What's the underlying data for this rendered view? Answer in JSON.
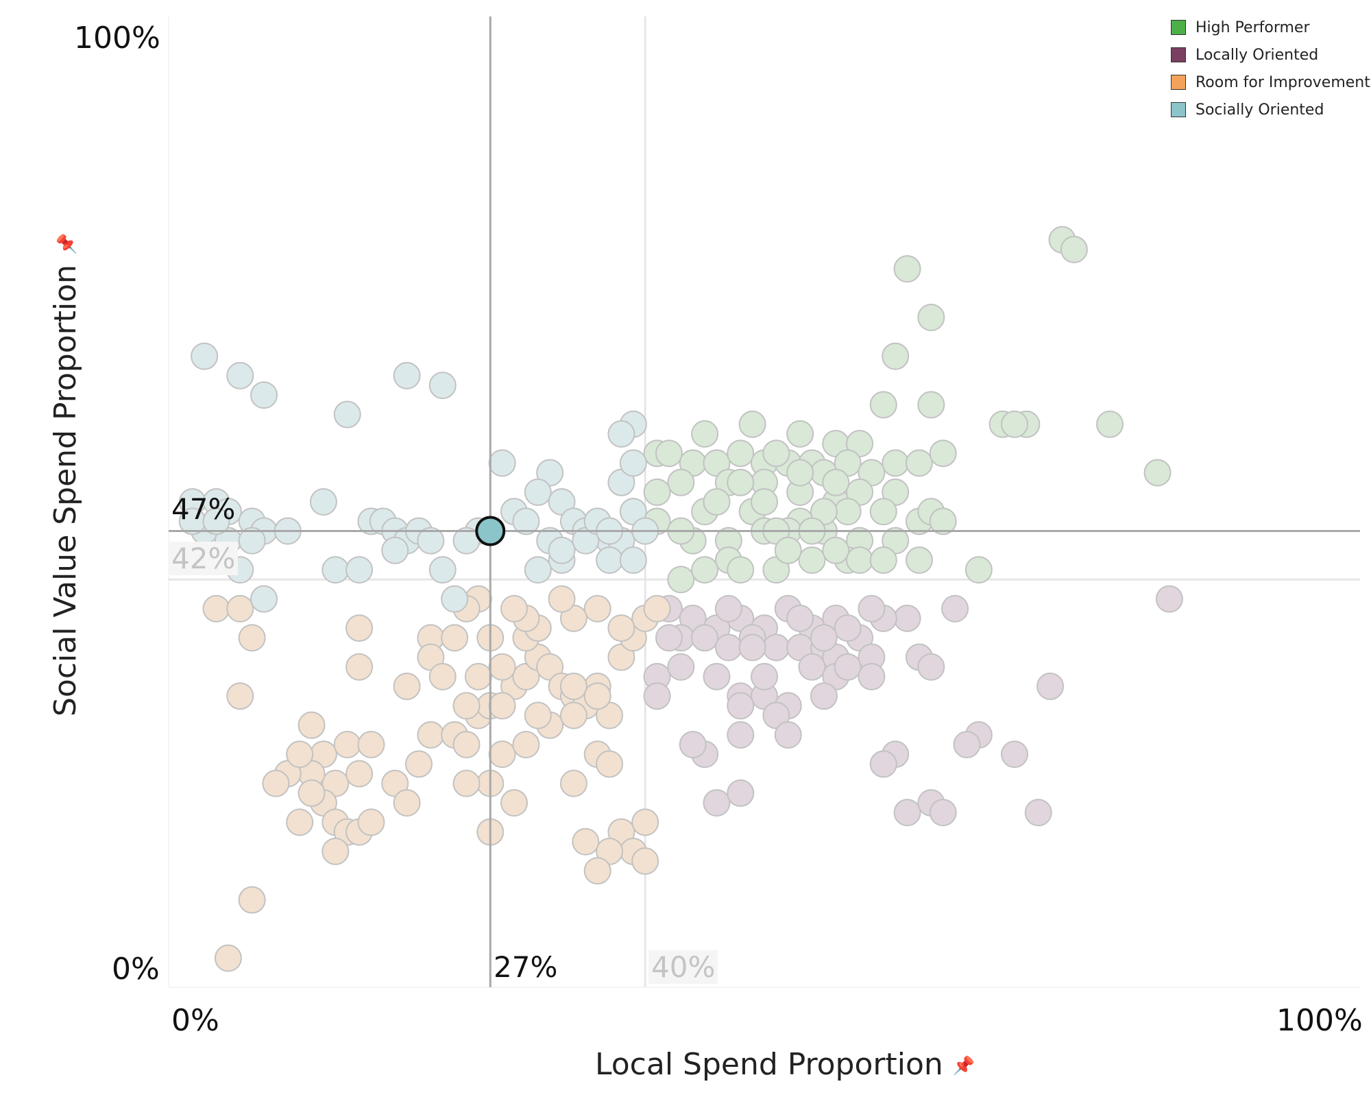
{
  "chart_data": {
    "type": "scatter",
    "xlabel": "Local Spend Proportion",
    "ylabel": "Social Value Spend Proportion",
    "xlim": [
      0,
      100
    ],
    "ylim": [
      0,
      100
    ],
    "corner_labels": {
      "x_min": "0%",
      "x_max": "100%",
      "y_min": "0%",
      "y_max": "100%"
    },
    "reference_lines": {
      "selected_x": {
        "value": 27,
        "label": "27%"
      },
      "selected_y": {
        "value": 47,
        "label": "47%"
      },
      "average_x": {
        "value": 40,
        "label": "40%"
      },
      "average_y": {
        "value": 42,
        "label": "42%"
      }
    },
    "legend_position": "top-right",
    "legend": [
      {
        "name": "High Performer",
        "color": "#4daf4a"
      },
      {
        "name": "Locally Oriented",
        "color": "#7b3f61"
      },
      {
        "name": "Room for Improvement",
        "color": "#f4a259"
      },
      {
        "name": "Socially Oriented",
        "color": "#8bc4c9"
      }
    ],
    "highlighted": {
      "x": 27,
      "y": 47,
      "group": "Socially Oriented"
    },
    "series": [
      {
        "name": "High Performer",
        "color": "#d9e8d7",
        "points": [
          [
            62,
            74
          ],
          [
            75,
            77
          ],
          [
            76,
            76
          ],
          [
            64,
            69
          ],
          [
            61,
            65
          ],
          [
            60,
            60
          ],
          [
            64,
            60
          ],
          [
            72,
            58
          ],
          [
            79,
            58
          ],
          [
            83,
            53
          ],
          [
            45,
            57
          ],
          [
            49,
            58
          ],
          [
            53,
            57
          ],
          [
            56,
            56
          ],
          [
            58,
            56
          ],
          [
            61,
            54
          ],
          [
            63,
            54
          ],
          [
            65,
            55
          ],
          [
            70,
            58
          ],
          [
            71,
            58
          ],
          [
            41,
            55
          ],
          [
            42,
            55
          ],
          [
            44,
            54
          ],
          [
            46,
            54
          ],
          [
            48,
            55
          ],
          [
            50,
            54
          ],
          [
            52,
            54
          ],
          [
            54,
            54
          ],
          [
            55,
            53
          ],
          [
            57,
            54
          ],
          [
            59,
            53
          ],
          [
            43,
            52
          ],
          [
            47,
            52
          ],
          [
            50,
            52
          ],
          [
            53,
            51
          ],
          [
            56,
            50
          ],
          [
            58,
            51
          ],
          [
            61,
            51
          ],
          [
            41,
            48
          ],
          [
            45,
            49
          ],
          [
            49,
            49
          ],
          [
            53,
            48
          ],
          [
            57,
            49
          ],
          [
            60,
            49
          ],
          [
            63,
            48
          ],
          [
            64,
            49
          ],
          [
            44,
            46
          ],
          [
            47,
            46
          ],
          [
            50,
            47
          ],
          [
            52,
            47
          ],
          [
            55,
            47
          ],
          [
            58,
            46
          ],
          [
            61,
            46
          ],
          [
            63,
            44
          ],
          [
            47,
            44
          ],
          [
            51,
            43
          ],
          [
            54,
            44
          ],
          [
            57,
            44
          ],
          [
            68,
            43
          ],
          [
            43,
            42
          ],
          [
            48,
            43
          ],
          [
            45,
            43
          ],
          [
            51,
            47
          ],
          [
            55,
            49
          ],
          [
            56,
            45
          ],
          [
            54,
            47
          ],
          [
            46,
            50
          ],
          [
            48,
            52
          ],
          [
            51,
            55
          ],
          [
            53,
            53
          ],
          [
            50,
            50
          ],
          [
            56,
            52
          ],
          [
            52,
            45
          ],
          [
            41,
            51
          ],
          [
            43,
            47
          ],
          [
            58,
            44
          ],
          [
            60,
            44
          ],
          [
            65,
            48
          ]
        ]
      },
      {
        "name": "Locally Oriented",
        "color": "#e1d6dd",
        "points": [
          [
            84,
            40
          ],
          [
            66,
            39
          ],
          [
            62,
            38
          ],
          [
            63,
            34
          ],
          [
            74,
            31
          ],
          [
            68,
            26
          ],
          [
            64,
            33
          ],
          [
            71,
            24
          ],
          [
            61,
            24
          ],
          [
            67,
            25
          ],
          [
            42,
            39
          ],
          [
            44,
            38
          ],
          [
            46,
            37
          ],
          [
            48,
            38
          ],
          [
            50,
            37
          ],
          [
            52,
            39
          ],
          [
            54,
            37
          ],
          [
            56,
            38
          ],
          [
            58,
            36
          ],
          [
            43,
            36
          ],
          [
            45,
            36
          ],
          [
            47,
            35
          ],
          [
            49,
            36
          ],
          [
            51,
            35
          ],
          [
            53,
            35
          ],
          [
            55,
            35
          ],
          [
            57,
            37
          ],
          [
            59,
            34
          ],
          [
            41,
            32
          ],
          [
            43,
            33
          ],
          [
            46,
            32
          ],
          [
            48,
            30
          ],
          [
            50,
            30
          ],
          [
            52,
            29
          ],
          [
            54,
            33
          ],
          [
            56,
            34
          ],
          [
            41,
            30
          ],
          [
            48,
            26
          ],
          [
            51,
            28
          ],
          [
            52,
            26
          ],
          [
            56,
            32
          ],
          [
            57,
            33
          ],
          [
            59,
            32
          ],
          [
            60,
            38
          ],
          [
            42,
            36
          ],
          [
            47,
            39
          ],
          [
            49,
            35
          ],
          [
            53,
            38
          ],
          [
            55,
            36
          ],
          [
            45,
            24
          ],
          [
            44,
            25
          ],
          [
            46,
            19
          ],
          [
            48,
            20
          ],
          [
            60,
            23
          ],
          [
            62,
            18
          ],
          [
            64,
            19
          ],
          [
            65,
            18
          ],
          [
            73,
            18
          ],
          [
            48,
            29
          ],
          [
            59,
            39
          ],
          [
            55,
            30
          ],
          [
            50,
            32
          ]
        ]
      },
      {
        "name": "Room for Improvement",
        "color": "#f2e1d0",
        "points": [
          [
            4,
            39
          ],
          [
            6,
            39
          ],
          [
            7,
            36
          ],
          [
            6,
            30
          ],
          [
            16,
            37
          ],
          [
            16,
            33
          ],
          [
            20,
            31
          ],
          [
            22,
            36
          ],
          [
            24,
            36
          ],
          [
            22,
            34
          ],
          [
            23,
            32
          ],
          [
            12,
            27
          ],
          [
            13,
            24
          ],
          [
            15,
            25
          ],
          [
            17,
            25
          ],
          [
            14,
            21
          ],
          [
            16,
            22
          ],
          [
            19,
            21
          ],
          [
            21,
            23
          ],
          [
            22,
            26
          ],
          [
            24,
            26
          ],
          [
            25,
            25
          ],
          [
            26,
            28
          ],
          [
            27,
            29
          ],
          [
            28,
            24
          ],
          [
            29,
            31
          ],
          [
            30,
            32
          ],
          [
            31,
            34
          ],
          [
            32,
            33
          ],
          [
            33,
            31
          ],
          [
            34,
            30
          ],
          [
            35,
            29
          ],
          [
            36,
            31
          ],
          [
            37,
            28
          ],
          [
            38,
            34
          ],
          [
            39,
            36
          ],
          [
            40,
            38
          ],
          [
            41,
            39
          ],
          [
            38,
            37
          ],
          [
            36,
            39
          ],
          [
            34,
            38
          ],
          [
            33,
            40
          ],
          [
            30,
            36
          ],
          [
            28,
            33
          ],
          [
            26,
            32
          ],
          [
            25,
            29
          ],
          [
            27,
            21
          ],
          [
            29,
            19
          ],
          [
            30,
            25
          ],
          [
            32,
            27
          ],
          [
            34,
            28
          ],
          [
            36,
            24
          ],
          [
            37,
            23
          ],
          [
            38,
            16
          ],
          [
            39,
            14
          ],
          [
            40,
            17
          ],
          [
            37,
            14
          ],
          [
            36,
            12
          ],
          [
            35,
            15
          ],
          [
            40,
            13
          ],
          [
            31,
            37
          ],
          [
            30,
            38
          ],
          [
            29,
            39
          ],
          [
            26,
            40
          ],
          [
            25,
            39
          ],
          [
            27,
            36
          ],
          [
            31,
            28
          ],
          [
            34,
            31
          ],
          [
            36,
            30
          ],
          [
            28,
            29
          ],
          [
            12,
            22
          ],
          [
            13,
            19
          ],
          [
            11,
            17
          ],
          [
            14,
            17
          ],
          [
            15,
            16
          ],
          [
            16,
            16
          ],
          [
            17,
            17
          ],
          [
            14,
            14
          ],
          [
            12,
            20
          ],
          [
            10,
            22
          ],
          [
            11,
            24
          ],
          [
            9,
            21
          ],
          [
            20,
            19
          ],
          [
            7,
            9
          ],
          [
            5,
            3
          ],
          [
            27,
            16
          ],
          [
            25,
            21
          ],
          [
            34,
            21
          ]
        ]
      },
      {
        "name": "Socially Oriented",
        "color": "#dce9ea",
        "points": [
          [
            3,
            65
          ],
          [
            6,
            63
          ],
          [
            8,
            61
          ],
          [
            15,
            59
          ],
          [
            20,
            63
          ],
          [
            23,
            62
          ],
          [
            28,
            54
          ],
          [
            32,
            53
          ],
          [
            39,
            58
          ],
          [
            38,
            57
          ],
          [
            2,
            50
          ],
          [
            4,
            50
          ],
          [
            5,
            49
          ],
          [
            7,
            48
          ],
          [
            8,
            47
          ],
          [
            10,
            47
          ],
          [
            13,
            50
          ],
          [
            17,
            48
          ],
          [
            18,
            48
          ],
          [
            19,
            47
          ],
          [
            20,
            46
          ],
          [
            21,
            47
          ],
          [
            22,
            46
          ],
          [
            26,
            47
          ],
          [
            29,
            49
          ],
          [
            31,
            51
          ],
          [
            33,
            50
          ],
          [
            34,
            48
          ],
          [
            35,
            47
          ],
          [
            36,
            47
          ],
          [
            37,
            46
          ],
          [
            38,
            46
          ],
          [
            39,
            49
          ],
          [
            40,
            47
          ],
          [
            38,
            52
          ],
          [
            39,
            54
          ],
          [
            14,
            43
          ],
          [
            16,
            43
          ],
          [
            23,
            43
          ],
          [
            24,
            40
          ],
          [
            19,
            45
          ],
          [
            25,
            46
          ],
          [
            30,
            48
          ],
          [
            32,
            46
          ],
          [
            33,
            44
          ],
          [
            35,
            46
          ],
          [
            36,
            48
          ],
          [
            37,
            47
          ],
          [
            3,
            47
          ],
          [
            5,
            46
          ],
          [
            8,
            40
          ],
          [
            6,
            43
          ],
          [
            2,
            48
          ],
          [
            4,
            48
          ],
          [
            7,
            46
          ],
          [
            31,
            43
          ],
          [
            33,
            45
          ],
          [
            37,
            44
          ],
          [
            39,
            44
          ]
        ]
      }
    ]
  }
}
